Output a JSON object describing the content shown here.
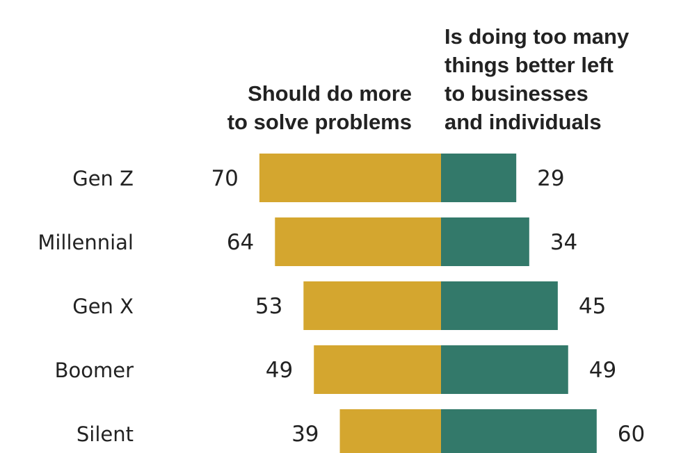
{
  "chart_data": {
    "type": "bar",
    "orientation": "horizontal-diverging",
    "categories": [
      "Gen Z",
      "Millennial",
      "Gen X",
      "Boomer",
      "Silent"
    ],
    "series": [
      {
        "name": "Should do more to solve problems",
        "header_lines": [
          "Should do more",
          "to solve problems"
        ],
        "side": "left",
        "color": "#D4A62F",
        "values": [
          70,
          64,
          53,
          49,
          39
        ]
      },
      {
        "name": "Is doing too many things better left to businesses and individuals",
        "header_lines": [
          "Is doing too many",
          "things better left",
          "to businesses",
          "and individuals"
        ],
        "side": "right",
        "color": "#33796A",
        "values": [
          29,
          34,
          45,
          49,
          60
        ]
      }
    ],
    "xlim": [
      0,
      100
    ],
    "grid": false,
    "legend": "column headers"
  }
}
